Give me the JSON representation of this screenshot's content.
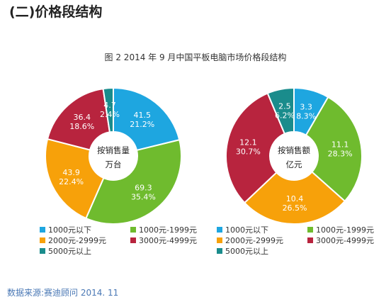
{
  "heading": "(二)价格段结构",
  "figure_title": "图 2    2014 年 9 月中国平板电脑市场价格段结构",
  "source": "数据来源:赛迪顾问 2014. 11",
  "chart_data": [
    {
      "type": "pie",
      "center_label_lines": [
        "按销售量",
        "万台"
      ],
      "slices": [
        {
          "name": "1000元以下",
          "value": 41.5,
          "percent": "21.2%",
          "color": "#1ea6e0"
        },
        {
          "name": "1000元-1999元",
          "value": 69.3,
          "percent": "35.4%",
          "color": "#6fbb2e"
        },
        {
          "name": "2000元-2999元",
          "value": 43.9,
          "percent": "22.4%",
          "color": "#f7a10a"
        },
        {
          "name": "3000元-4999元",
          "value": 36.4,
          "percent": "18.6%",
          "color": "#b8243e"
        },
        {
          "name": "5000元以上",
          "value": 4.7,
          "percent": "2.4%",
          "color": "#1a8c8c"
        }
      ]
    },
    {
      "type": "pie",
      "center_label_lines": [
        "按销售额",
        "亿元"
      ],
      "slices": [
        {
          "name": "1000元以下",
          "value": 3.3,
          "percent": "8.3%",
          "color": "#1ea6e0"
        },
        {
          "name": "1000元-1999元",
          "value": 11.1,
          "percent": "28.3%",
          "color": "#6fbb2e"
        },
        {
          "name": "2000元-2999元",
          "value": 10.4,
          "percent": "26.5%",
          "color": "#f7a10a"
        },
        {
          "name": "3000元-4999元",
          "value": 12.1,
          "percent": "30.7%",
          "color": "#b8243e"
        },
        {
          "name": "5000元以上",
          "value": 2.5,
          "percent": "6.2%",
          "color": "#1a8c8c"
        }
      ]
    }
  ],
  "legend": [
    {
      "label": "1000元以下",
      "color": "#1ea6e0"
    },
    {
      "label": "1000元-1999元",
      "color": "#6fbb2e"
    },
    {
      "label": "2000元-2999元",
      "color": "#f7a10a"
    },
    {
      "label": "3000元-4999元",
      "color": "#b8243e"
    },
    {
      "label": "5000元以上",
      "color": "#1a8c8c"
    }
  ]
}
